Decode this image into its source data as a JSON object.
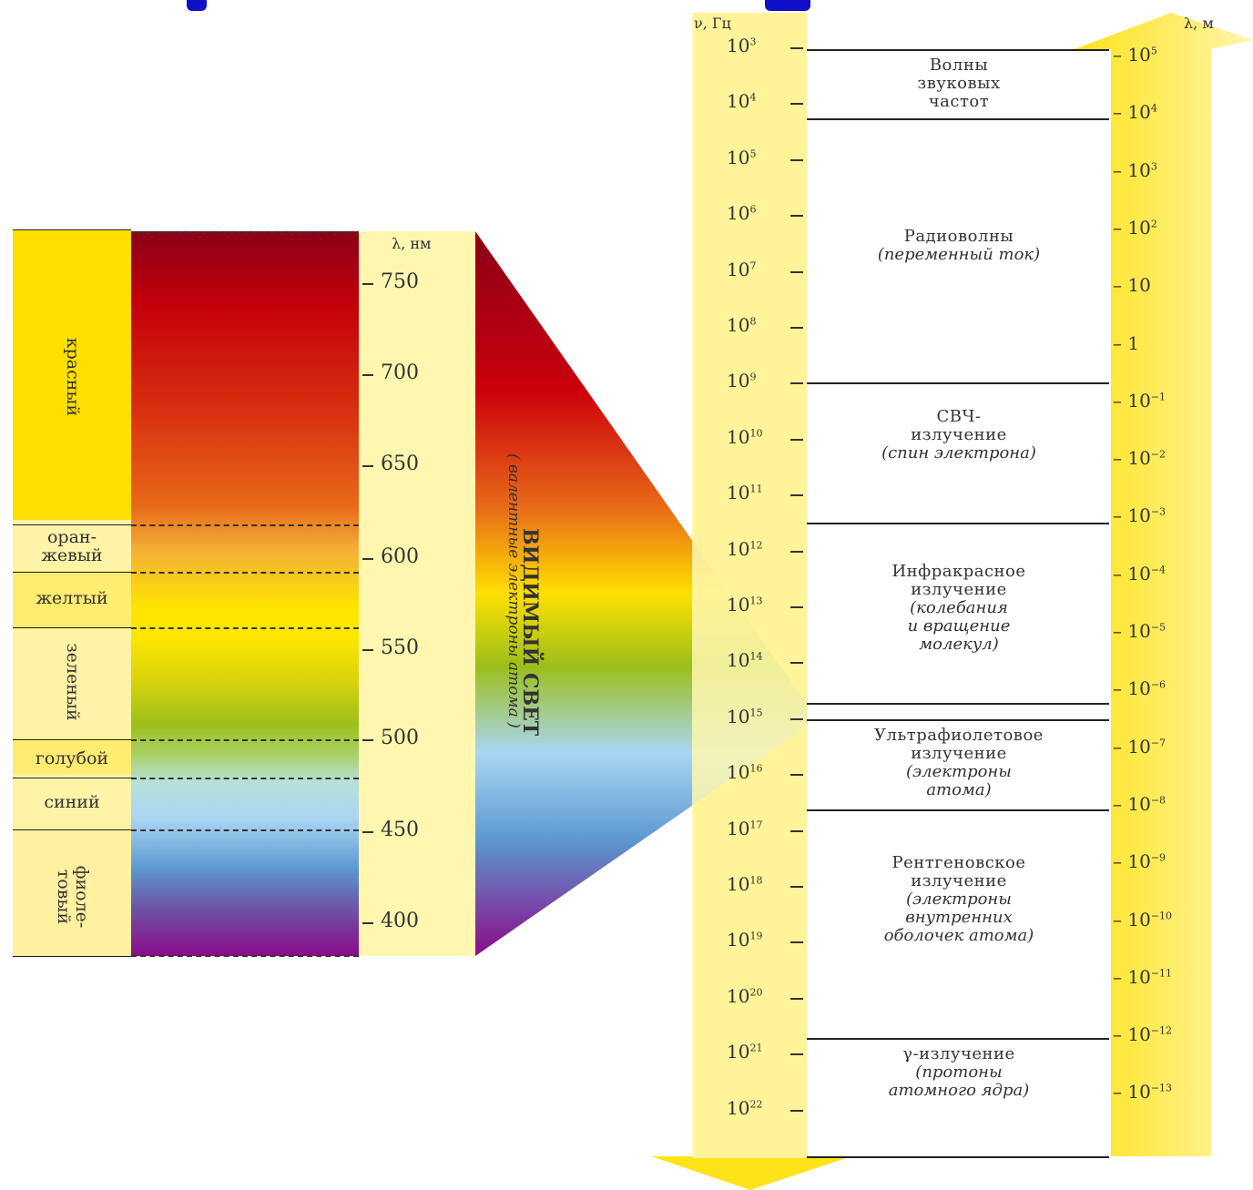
{
  "visible_spectrum": {
    "unit_label": "λ, нм",
    "ticks": [
      "750",
      "700",
      "650",
      "600",
      "550",
      "500",
      "450",
      "400"
    ],
    "colors": [
      {
        "name": "красный"
      },
      {
        "name": "оран-\nжевый"
      },
      {
        "name": "желтый"
      },
      {
        "name": "зеленый"
      },
      {
        "name": "голубой"
      },
      {
        "name": "синий"
      },
      {
        "name": "фиоле-\nтовый"
      }
    ],
    "title": "ВИДИМЫЙ СВЕТ",
    "note": "( валентные электроны атома )"
  },
  "em_scale": {
    "freq_unit": "ν, Гц",
    "wavelength_unit": "λ, м",
    "frequency_ticks": [
      {
        "base": "10",
        "exp": "3"
      },
      {
        "base": "10",
        "exp": "4"
      },
      {
        "base": "10",
        "exp": "5"
      },
      {
        "base": "10",
        "exp": "6"
      },
      {
        "base": "10",
        "exp": "7"
      },
      {
        "base": "10",
        "exp": "8"
      },
      {
        "base": "10",
        "exp": "9"
      },
      {
        "base": "10",
        "exp": "10"
      },
      {
        "base": "10",
        "exp": "11"
      },
      {
        "base": "10",
        "exp": "12"
      },
      {
        "base": "10",
        "exp": "13"
      },
      {
        "base": "10",
        "exp": "14"
      },
      {
        "base": "10",
        "exp": "15"
      },
      {
        "base": "10",
        "exp": "16"
      },
      {
        "base": "10",
        "exp": "17"
      },
      {
        "base": "10",
        "exp": "18"
      },
      {
        "base": "10",
        "exp": "19"
      },
      {
        "base": "10",
        "exp": "20"
      },
      {
        "base": "10",
        "exp": "21"
      },
      {
        "base": "10",
        "exp": "22"
      }
    ],
    "wavelength_ticks": [
      {
        "base": "10",
        "exp": "5"
      },
      {
        "base": "10",
        "exp": "4"
      },
      {
        "base": "10",
        "exp": "3"
      },
      {
        "base": "10",
        "exp": "2"
      },
      {
        "base": "10",
        "exp": ""
      },
      {
        "base": "1",
        "exp": ""
      },
      {
        "base": "10",
        "exp": "−1"
      },
      {
        "base": "10",
        "exp": "−2"
      },
      {
        "base": "10",
        "exp": "−3"
      },
      {
        "base": "10",
        "exp": "−4"
      },
      {
        "base": "10",
        "exp": "−5"
      },
      {
        "base": "10",
        "exp": "−6"
      },
      {
        "base": "10",
        "exp": "−7"
      },
      {
        "base": "10",
        "exp": "−8"
      },
      {
        "base": "10",
        "exp": "−9"
      },
      {
        "base": "10",
        "exp": "−10"
      },
      {
        "base": "10",
        "exp": "−11"
      },
      {
        "base": "10",
        "exp": "−12"
      },
      {
        "base": "10",
        "exp": "−13"
      }
    ],
    "regions": [
      {
        "lines": [
          "Волны",
          "звуковых",
          "частот"
        ],
        "notes": []
      },
      {
        "lines": [
          "Радиоволны"
        ],
        "notes": [
          "(переменный ток)"
        ]
      },
      {
        "lines": [
          "СВЧ-",
          "излучение"
        ],
        "notes": [
          "(спин электрона)"
        ]
      },
      {
        "lines": [
          "Инфракрасное",
          "излучение"
        ],
        "notes": [
          "(колебания",
          "и вращение",
          "молекул)"
        ]
      },
      {
        "lines": [
          "Ультрафиолетовое",
          "излучение"
        ],
        "notes": [
          "(электроны",
          "атома)"
        ]
      },
      {
        "lines": [
          "Рентгеновское",
          "излучение"
        ],
        "notes": [
          "(электроны",
          "внутренних",
          "оболочек атома)"
        ]
      },
      {
        "lines": [
          "γ-излучение"
        ],
        "notes": [
          "(протоны",
          "атомного ядра)"
        ]
      }
    ]
  },
  "colors": {
    "band_yellow": "#ffde00",
    "scale_yellow": "#fff7b0",
    "arrow_yellow": "#ffe000",
    "title_blue": "#1010c8"
  }
}
